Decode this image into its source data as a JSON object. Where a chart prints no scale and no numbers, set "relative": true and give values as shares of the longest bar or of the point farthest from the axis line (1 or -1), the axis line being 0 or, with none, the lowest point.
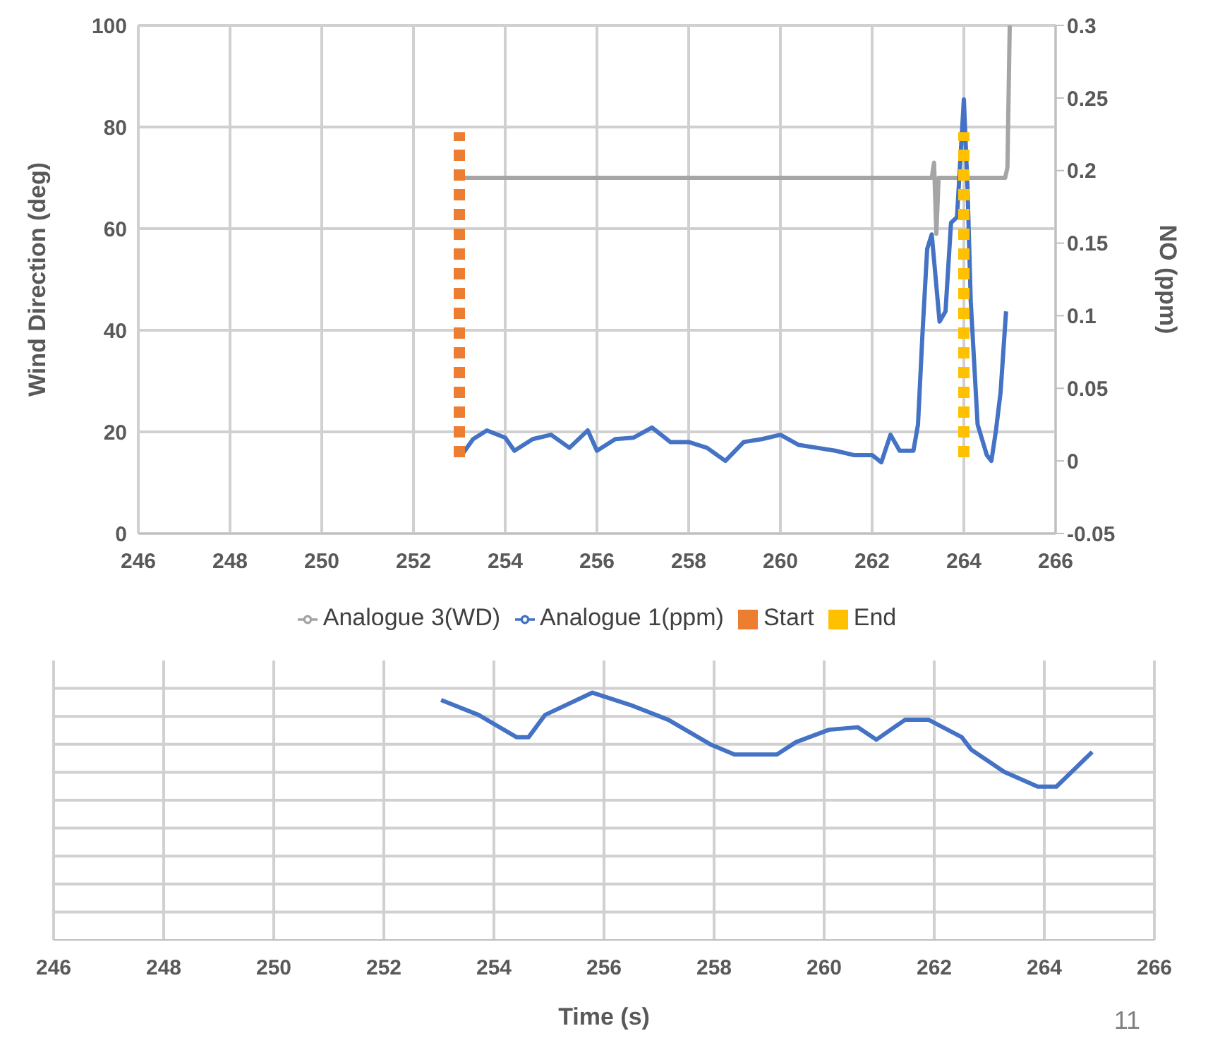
{
  "chart_data": [
    {
      "type": "line",
      "ylabel": "Wind Direction (deg)",
      "y2label": "NO (ppm)",
      "xlim": [
        246,
        266
      ],
      "xticks": [
        246,
        248,
        250,
        252,
        254,
        256,
        258,
        260,
        262,
        264,
        266
      ],
      "ylim": [
        0,
        100
      ],
      "yticks": [
        0,
        20,
        40,
        60,
        80,
        100
      ],
      "y2lim": [
        -0.05,
        0.3
      ],
      "y2ticks": [
        -0.05,
        0,
        0.05,
        0.1,
        0.15,
        0.2,
        0.25,
        0.3
      ],
      "grid": true,
      "legend": "bottom",
      "marker": "none",
      "series": [
        {
          "name": "Analogue 3(WD)",
          "color": "#a5a5a5",
          "x": [
            253.05,
            263.3,
            263.35,
            263.4,
            263.45,
            264.9,
            264.95,
            265.0
          ],
          "values": [
            70,
            70,
            73,
            59,
            70,
            70,
            72,
            100
          ]
        },
        {
          "name": "Analogue 1(ppm)",
          "color": "#4472c4",
          "axis": "y2",
          "x": [
            253.05,
            253.3,
            253.6,
            254.0,
            254.2,
            254.6,
            255.0,
            255.4,
            255.8,
            256.0,
            256.4,
            256.8,
            257.2,
            257.6,
            258.0,
            258.4,
            258.8,
            259.2,
            259.6,
            260.0,
            260.4,
            260.8,
            261.2,
            261.6,
            262.0,
            262.2,
            262.4,
            262.6,
            262.9,
            263.0,
            263.1,
            263.2,
            263.3,
            263.47,
            263.6,
            263.72,
            263.85,
            264.0,
            264.08,
            264.15,
            264.3,
            264.5,
            264.6,
            264.7,
            264.8,
            264.92
          ],
          "values": [
            0.004,
            0.015,
            0.021,
            0.016,
            0.007,
            0.015,
            0.018,
            0.009,
            0.021,
            0.007,
            0.015,
            0.016,
            0.023,
            0.013,
            0.013,
            0.009,
            0.0,
            0.013,
            0.015,
            0.018,
            0.011,
            0.009,
            0.007,
            0.004,
            0.004,
            -0.001,
            0.018,
            0.007,
            0.007,
            0.025,
            0.089,
            0.146,
            0.156,
            0.096,
            0.103,
            0.164,
            0.168,
            0.249,
            0.188,
            0.11,
            0.025,
            0.004,
            0.0,
            0.021,
            0.047,
            0.103
          ]
        },
        {
          "name": "Start",
          "color": "#ed7d31",
          "line_style": "dashed",
          "x": [
            253,
            253
          ],
          "values": [
            15,
            79
          ]
        },
        {
          "name": "End",
          "color": "#ffc000",
          "line_style": "dashed",
          "x": [
            264,
            264
          ],
          "values": [
            15,
            79
          ]
        }
      ]
    },
    {
      "type": "line",
      "relative": true,
      "xlabel": "Time (s)",
      "xlim": [
        246,
        266
      ],
      "xticks": [
        246,
        248,
        250,
        252,
        254,
        256,
        258,
        260,
        262,
        264,
        266
      ],
      "tick_labels": "x",
      "grid": true,
      "marker": "none",
      "annotations": [
        "11"
      ],
      "series": [
        {
          "color": "#4472c4",
          "x": [
            253.04,
            253.72,
            254.41,
            254.63,
            254.93,
            255.79,
            256.48,
            257.17,
            257.94,
            258.37,
            259.14,
            259.49,
            260.09,
            260.61,
            260.95,
            261.47,
            261.9,
            262.5,
            262.67,
            263.27,
            263.88,
            264.22,
            264.87
          ],
          "values": [
            0.97,
            0.91,
            0.82,
            0.82,
            0.91,
            1.0,
            0.95,
            0.89,
            0.79,
            0.75,
            0.75,
            0.8,
            0.85,
            0.86,
            0.81,
            0.89,
            0.89,
            0.82,
            0.77,
            0.68,
            0.62,
            0.62,
            0.76
          ]
        }
      ]
    }
  ]
}
